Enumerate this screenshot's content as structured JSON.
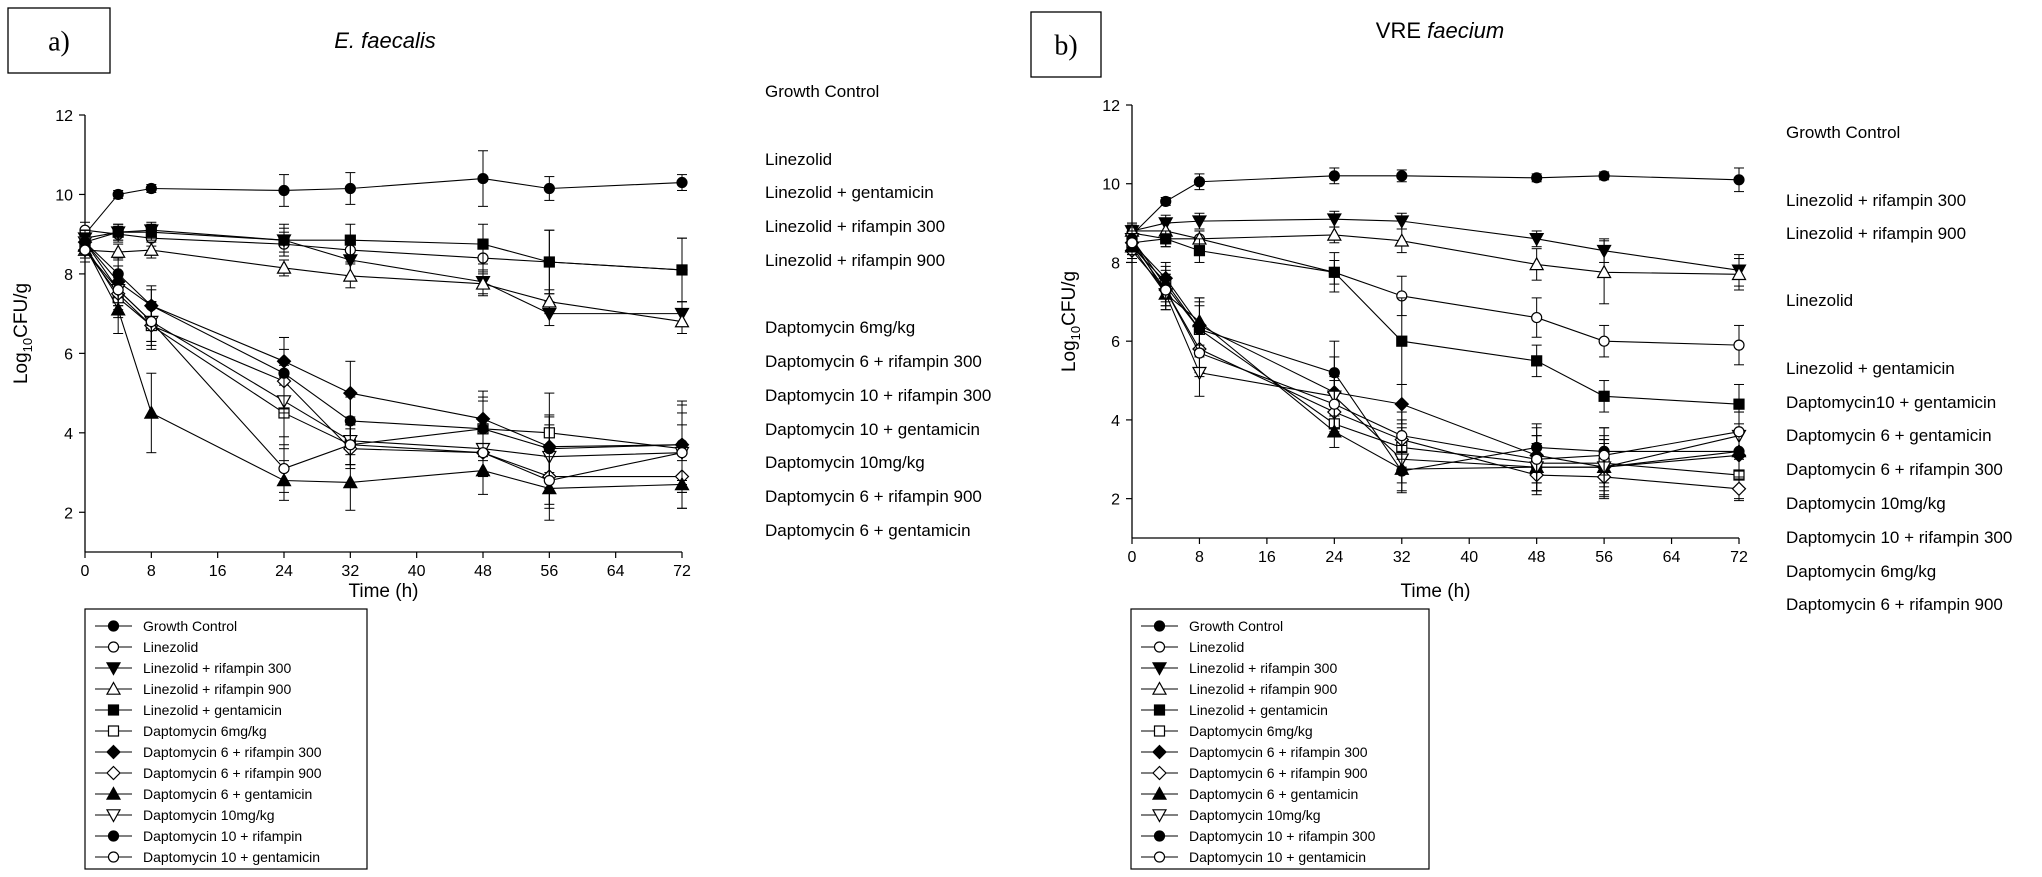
{
  "chart_data": [
    {
      "type": "line",
      "panel_label": "a)",
      "title_plain": "",
      "title_italic": "E. faecalis",
      "xlabel": "Time (h)",
      "ylabel_prefix": "Log",
      "ylabel_sub": "10",
      "ylabel_suffix": "CFU/g",
      "xlim": [
        0,
        72
      ],
      "ylim": [
        1,
        12
      ],
      "xticks": [
        0,
        8,
        16,
        24,
        32,
        40,
        48,
        56,
        64,
        72
      ],
      "yticks": [
        2,
        4,
        6,
        8,
        10,
        12
      ],
      "x": [
        0,
        4,
        8,
        24,
        32,
        48,
        56,
        72
      ],
      "series": [
        {
          "name": "Growth Control",
          "marker": "circle",
          "fill": "filled",
          "values": [
            9.0,
            10.0,
            10.15,
            10.1,
            10.15,
            10.4,
            10.15,
            10.3
          ],
          "err": [
            0.1,
            0.1,
            0.1,
            0.4,
            0.4,
            0.7,
            0.3,
            0.2
          ]
        },
        {
          "name": "Linezolid",
          "marker": "circle",
          "fill": "open",
          "values": [
            9.1,
            9.0,
            8.9,
            8.75,
            8.6,
            8.4,
            8.3,
            8.1
          ],
          "err": [
            0.2,
            0.2,
            0.2,
            0.3,
            0.3,
            0.4,
            0.8,
            0.8
          ]
        },
        {
          "name": "Linezolid + rifampin 300",
          "marker": "triangle-down",
          "fill": "filled",
          "values": [
            8.9,
            9.05,
            9.1,
            8.85,
            8.35,
            7.8,
            7.0,
            7.0
          ],
          "err": [
            0.2,
            0.2,
            0.2,
            0.3,
            0.4,
            0.3,
            0.3,
            0.3
          ]
        },
        {
          "name": "Linezolid + rifampin 900",
          "marker": "triangle-up",
          "fill": "open",
          "values": [
            8.6,
            8.55,
            8.6,
            8.15,
            7.95,
            7.75,
            7.3,
            6.8
          ],
          "err": [
            0.2,
            0.2,
            0.2,
            0.2,
            0.3,
            0.3,
            0.3,
            0.3
          ]
        },
        {
          "name": "Linezolid + gentamicin",
          "marker": "square",
          "fill": "filled",
          "values": [
            8.8,
            9.05,
            9.05,
            8.85,
            8.85,
            8.75,
            8.3,
            8.1
          ],
          "err": [
            0.2,
            0.2,
            0.2,
            0.4,
            0.4,
            0.5,
            0.8,
            0.8
          ]
        },
        {
          "name": "Daptomycin 6mg/kg",
          "marker": "square",
          "fill": "open",
          "values": [
            8.7,
            7.4,
            6.7,
            4.5,
            3.7,
            4.1,
            4.0,
            3.6
          ],
          "err": [
            0.3,
            0.5,
            0.6,
            0.9,
            0.5,
            0.8,
            1.0,
            1.1
          ]
        },
        {
          "name": "Daptomycin 6 + rifampin 300",
          "marker": "diamond",
          "fill": "filled",
          "values": [
            8.8,
            7.8,
            7.2,
            5.8,
            5.0,
            4.35,
            3.65,
            3.7
          ],
          "err": [
            0.3,
            0.4,
            0.4,
            0.6,
            0.8,
            0.7,
            0.8,
            1.1
          ]
        },
        {
          "name": "Daptomycin 6 + rifampin 900",
          "marker": "diamond",
          "fill": "open",
          "values": [
            8.6,
            7.5,
            6.7,
            5.3,
            3.6,
            3.5,
            2.9,
            2.9
          ],
          "err": [
            0.3,
            0.4,
            0.5,
            0.8,
            0.5,
            0.6,
            0.8,
            0.8
          ]
        },
        {
          "name": "Daptomycin 6 + gentamicin",
          "marker": "triangle-up",
          "fill": "filled",
          "values": [
            8.7,
            7.1,
            4.5,
            2.8,
            2.75,
            3.05,
            2.6,
            2.7
          ],
          "err": [
            0.3,
            0.6,
            1.0,
            0.5,
            0.7,
            0.6,
            0.8,
            0.6
          ]
        },
        {
          "name": "Daptomycin 10mg/kg",
          "marker": "triangle-down",
          "fill": "open",
          "values": [
            8.8,
            7.6,
            6.8,
            4.8,
            3.8,
            3.6,
            3.4,
            3.5
          ],
          "err": [
            0.3,
            0.4,
            0.5,
            0.9,
            0.6,
            0.7,
            0.8,
            1.0
          ]
        },
        {
          "name": "Daptomycin 10 + rifampin",
          "marker": "circle",
          "fill": "filled",
          "values": [
            8.8,
            8.0,
            7.2,
            5.5,
            4.3,
            4.1,
            3.6,
            3.7
          ],
          "err": [
            0.3,
            0.4,
            0.5,
            0.9,
            0.6,
            0.7,
            0.8,
            1.0
          ]
        },
        {
          "name": "Daptomycin 10 + gentamicin",
          "marker": "circle",
          "fill": "open",
          "values": [
            8.6,
            7.6,
            6.8,
            3.1,
            3.7,
            3.5,
            2.8,
            3.5
          ],
          "err": [
            0.3,
            0.4,
            0.5,
            0.6,
            0.5,
            0.6,
            0.6,
            0.7
          ]
        }
      ],
      "right_labels": [
        "Growth Control",
        "Linezolid",
        "Linezolid + gentamicin",
        "Linezolid + rifampin 300",
        "Linezolid + rifampin 900",
        "Daptomycin 6mg/kg",
        "Daptomycin 6 + rifampin 300",
        "Daptomycin 10 + rifampin 300",
        "Daptomycin 10 + gentamicin",
        "Daptomycin 10mg/kg",
        "Daptomycin 6 + rifampin 900",
        "Daptomycin 6 + gentamicin"
      ]
    },
    {
      "type": "line",
      "panel_label": "b)",
      "title_plain": "VRE ",
      "title_italic": "faecium",
      "xlabel": "Time (h)",
      "ylabel_prefix": "Log",
      "ylabel_sub": "10",
      "ylabel_suffix": "CFU/g",
      "xlim": [
        0,
        72
      ],
      "ylim": [
        1,
        12
      ],
      "xticks": [
        0,
        8,
        16,
        24,
        32,
        40,
        48,
        56,
        64,
        72
      ],
      "yticks": [
        2,
        4,
        6,
        8,
        10,
        12
      ],
      "x": [
        0,
        4,
        8,
        24,
        32,
        48,
        56,
        72
      ],
      "series": [
        {
          "name": "Growth Control",
          "marker": "circle",
          "fill": "filled",
          "values": [
            8.7,
            9.55,
            10.05,
            10.2,
            10.2,
            10.15,
            10.2,
            10.1
          ],
          "err": [
            0.1,
            0.1,
            0.2,
            0.2,
            0.15,
            0.1,
            0.1,
            0.3
          ]
        },
        {
          "name": "Linezolid",
          "marker": "circle",
          "fill": "open",
          "values": [
            8.75,
            8.6,
            8.6,
            7.75,
            7.15,
            6.6,
            6.0,
            5.9
          ],
          "err": [
            0.2,
            0.2,
            0.2,
            0.3,
            0.5,
            0.5,
            0.4,
            0.5
          ]
        },
        {
          "name": "Linezolid + rifampin 300",
          "marker": "triangle-down",
          "fill": "filled",
          "values": [
            8.8,
            9.0,
            9.05,
            9.1,
            9.05,
            8.6,
            8.3,
            7.8
          ],
          "err": [
            0.2,
            0.2,
            0.2,
            0.2,
            0.2,
            0.2,
            0.3,
            0.4
          ]
        },
        {
          "name": "Linezolid + rifampin 900",
          "marker": "triangle-up",
          "fill": "open",
          "values": [
            8.8,
            8.8,
            8.6,
            8.7,
            8.55,
            7.95,
            7.75,
            7.7
          ],
          "err": [
            0.2,
            0.2,
            0.2,
            0.2,
            0.3,
            0.4,
            0.8,
            0.4
          ]
        },
        {
          "name": "Linezolid + gentamicin",
          "marker": "square",
          "fill": "filled",
          "values": [
            8.5,
            8.6,
            8.3,
            7.75,
            6.0,
            5.5,
            4.6,
            4.4
          ],
          "err": [
            0.2,
            0.2,
            0.3,
            0.5,
            1.1,
            0.4,
            0.4,
            0.5
          ]
        },
        {
          "name": "Daptomycin 6mg/kg",
          "marker": "square",
          "fill": "open",
          "values": [
            8.4,
            7.5,
            6.3,
            3.9,
            3.3,
            2.9,
            2.9,
            2.6
          ],
          "err": [
            0.3,
            0.4,
            0.6,
            0.3,
            0.5,
            0.7,
            0.6,
            0.6
          ]
        },
        {
          "name": "Daptomycin 6 + rifampin 300",
          "marker": "diamond",
          "fill": "filled",
          "values": [
            8.5,
            7.6,
            6.4,
            4.7,
            4.4,
            3.1,
            2.8,
            3.1
          ],
          "err": [
            0.3,
            0.4,
            0.7,
            0.9,
            0.5,
            0.7,
            0.8,
            0.6
          ]
        },
        {
          "name": "Daptomycin 6 + rifampin 900",
          "marker": "diamond",
          "fill": "open",
          "values": [
            8.3,
            7.3,
            5.8,
            4.2,
            3.5,
            2.6,
            2.55,
            2.25
          ],
          "err": [
            0.3,
            0.4,
            0.6,
            0.5,
            0.5,
            0.5,
            0.5,
            0.3
          ]
        },
        {
          "name": "Daptomycin 6 + gentamicin",
          "marker": "triangle-up",
          "fill": "filled",
          "values": [
            8.4,
            7.2,
            6.5,
            3.7,
            2.75,
            2.8,
            2.8,
            3.2
          ],
          "err": [
            0.3,
            0.4,
            0.6,
            0.4,
            0.6,
            0.6,
            0.7,
            0.5
          ]
        },
        {
          "name": "Daptomycin 10mg/kg",
          "marker": "triangle-down",
          "fill": "open",
          "values": [
            8.6,
            7.2,
            5.2,
            4.6,
            3.0,
            2.8,
            2.8,
            3.6
          ],
          "err": [
            0.3,
            0.4,
            0.6,
            0.5,
            0.6,
            0.6,
            0.6,
            0.6
          ]
        },
        {
          "name": "Daptomycin 10 + rifampin 300",
          "marker": "circle",
          "fill": "filled",
          "values": [
            8.6,
            7.4,
            6.3,
            5.2,
            2.7,
            3.3,
            3.2,
            3.2
          ],
          "err": [
            0.3,
            0.4,
            0.7,
            0.8,
            0.5,
            0.6,
            0.6,
            0.5
          ]
        },
        {
          "name": "Daptomycin 10 + gentamicin",
          "marker": "circle",
          "fill": "open",
          "values": [
            8.5,
            7.3,
            5.7,
            4.4,
            3.6,
            3.0,
            3.1,
            3.7
          ],
          "err": [
            0.3,
            0.4,
            0.6,
            0.6,
            0.6,
            0.6,
            0.7,
            0.5
          ]
        }
      ],
      "right_labels": [
        "Growth Control",
        "Linezolid + rifampin 300",
        "Linezolid + rifampin 900",
        "Linezolid",
        "Linezolid + gentamicin",
        "Daptomycin10 + gentamicin",
        "Daptomycin 6 + gentamicin",
        "Daptomycin 6 + rifampin 300",
        "Daptomycin 10mg/kg",
        "Daptomycin 10 + rifampin 300",
        "Daptomycin 6mg/kg",
        "Daptomycin 6 + rifampin 900"
      ]
    }
  ]
}
